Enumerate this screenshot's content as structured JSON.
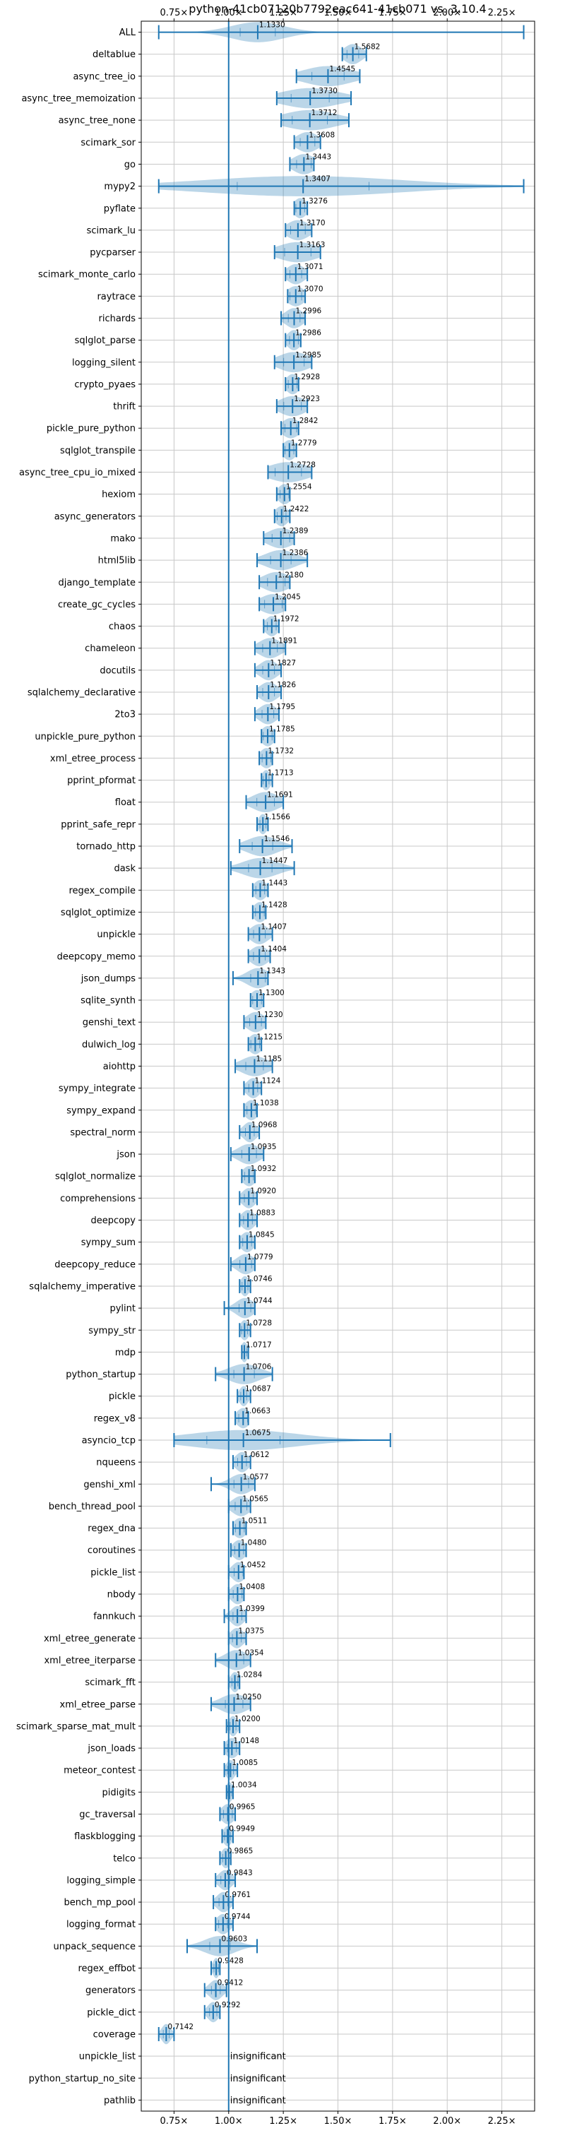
{
  "chart_data": {
    "type": "violin",
    "title": "python-41cb07120b7792eac641-41cb071 vs. 3.10.4",
    "xlim": [
      0.6,
      2.4
    ],
    "xticks": [
      0.75,
      1.0,
      1.25,
      1.5,
      1.75,
      2.0,
      2.25
    ],
    "xtick_labels": [
      "0.75×",
      "1.00×",
      "1.25×",
      "1.50×",
      "1.75×",
      "2.00×",
      "2.25×"
    ],
    "grid": true,
    "reference_line": 1.0,
    "benchmarks": [
      {
        "name": "ALL",
        "value": 1.133,
        "label": "1.1330",
        "lo": 0.68,
        "hi": 2.35,
        "spread": 0.12
      },
      {
        "name": "deltablue",
        "value": 1.5682,
        "label": "1.5682",
        "lo": 1.52,
        "hi": 1.63,
        "spread": 0.04
      },
      {
        "name": "async_tree_io",
        "value": 1.4545,
        "label": "1.4545",
        "lo": 1.31,
        "hi": 1.6,
        "spread": 0.11
      },
      {
        "name": "async_tree_memoization",
        "value": 1.373,
        "label": "1.3730",
        "lo": 1.22,
        "hi": 1.56,
        "spread": 0.13
      },
      {
        "name": "async_tree_none",
        "value": 1.3712,
        "label": "1.3712",
        "lo": 1.24,
        "hi": 1.55,
        "spread": 0.12
      },
      {
        "name": "scimark_sor",
        "value": 1.3608,
        "label": "1.3608",
        "lo": 1.3,
        "hi": 1.42,
        "spread": 0.05
      },
      {
        "name": "go",
        "value": 1.3443,
        "label": "1.3443",
        "lo": 1.28,
        "hi": 1.39,
        "spread": 0.05
      },
      {
        "name": "mypy2",
        "value": 1.3407,
        "label": "1.3407",
        "lo": 0.68,
        "hi": 2.35,
        "spread": 0.45
      },
      {
        "name": "pyflate",
        "value": 1.3276,
        "label": "1.3276",
        "lo": 1.3,
        "hi": 1.36,
        "spread": 0.03
      },
      {
        "name": "scimark_lu",
        "value": 1.317,
        "label": "1.3170",
        "lo": 1.26,
        "hi": 1.38,
        "spread": 0.05
      },
      {
        "name": "pycparser",
        "value": 1.3163,
        "label": "1.3163",
        "lo": 1.21,
        "hi": 1.42,
        "spread": 0.09
      },
      {
        "name": "scimark_monte_carlo",
        "value": 1.3071,
        "label": "1.3071",
        "lo": 1.26,
        "hi": 1.36,
        "spread": 0.04
      },
      {
        "name": "raytrace",
        "value": 1.307,
        "label": "1.3070",
        "lo": 1.27,
        "hi": 1.35,
        "spread": 0.04
      },
      {
        "name": "richards",
        "value": 1.2996,
        "label": "1.2996",
        "lo": 1.24,
        "hi": 1.35,
        "spread": 0.04
      },
      {
        "name": "sqlglot_parse",
        "value": 1.2986,
        "label": "1.2986",
        "lo": 1.26,
        "hi": 1.33,
        "spread": 0.03
      },
      {
        "name": "logging_silent",
        "value": 1.2985,
        "label": "1.2985",
        "lo": 1.21,
        "hi": 1.38,
        "spread": 0.07
      },
      {
        "name": "crypto_pyaes",
        "value": 1.2928,
        "label": "1.2928",
        "lo": 1.26,
        "hi": 1.32,
        "spread": 0.03
      },
      {
        "name": "thrift",
        "value": 1.2923,
        "label": "1.2923",
        "lo": 1.22,
        "hi": 1.36,
        "spread": 0.06
      },
      {
        "name": "pickle_pure_python",
        "value": 1.2842,
        "label": "1.2842",
        "lo": 1.24,
        "hi": 1.32,
        "spread": 0.04
      },
      {
        "name": "sqlglot_transpile",
        "value": 1.2779,
        "label": "1.2779",
        "lo": 1.25,
        "hi": 1.31,
        "spread": 0.03
      },
      {
        "name": "async_tree_cpu_io_mixed",
        "value": 1.2728,
        "label": "1.2728",
        "lo": 1.18,
        "hi": 1.38,
        "spread": 0.09
      },
      {
        "name": "hexiom",
        "value": 1.2554,
        "label": "1.2554",
        "lo": 1.22,
        "hi": 1.28,
        "spread": 0.03
      },
      {
        "name": "async_generators",
        "value": 1.2422,
        "label": "1.2422",
        "lo": 1.21,
        "hi": 1.28,
        "spread": 0.03
      },
      {
        "name": "mako",
        "value": 1.2389,
        "label": "1.2389",
        "lo": 1.16,
        "hi": 1.3,
        "spread": 0.06
      },
      {
        "name": "html5lib",
        "value": 1.2386,
        "label": "1.2386",
        "lo": 1.13,
        "hi": 1.36,
        "spread": 0.07
      },
      {
        "name": "django_template",
        "value": 1.218,
        "label": "1.2180",
        "lo": 1.14,
        "hi": 1.28,
        "spread": 0.06
      },
      {
        "name": "create_gc_cycles",
        "value": 1.2045,
        "label": "1.2045",
        "lo": 1.14,
        "hi": 1.26,
        "spread": 0.06
      },
      {
        "name": "chaos",
        "value": 1.1972,
        "label": "1.1972",
        "lo": 1.16,
        "hi": 1.23,
        "spread": 0.03
      },
      {
        "name": "chameleon",
        "value": 1.1891,
        "label": "1.1891",
        "lo": 1.12,
        "hi": 1.26,
        "spread": 0.05
      },
      {
        "name": "docutils",
        "value": 1.1827,
        "label": "1.1827",
        "lo": 1.12,
        "hi": 1.24,
        "spread": 0.04
      },
      {
        "name": "sqlalchemy_declarative",
        "value": 1.1826,
        "label": "1.1826",
        "lo": 1.13,
        "hi": 1.24,
        "spread": 0.04
      },
      {
        "name": "2to3",
        "value": 1.1795,
        "label": "1.1795",
        "lo": 1.12,
        "hi": 1.23,
        "spread": 0.04
      },
      {
        "name": "unpickle_pure_python",
        "value": 1.1785,
        "label": "1.1785",
        "lo": 1.15,
        "hi": 1.21,
        "spread": 0.03
      },
      {
        "name": "xml_etree_process",
        "value": 1.1732,
        "label": "1.1732",
        "lo": 1.14,
        "hi": 1.2,
        "spread": 0.03
      },
      {
        "name": "pprint_pformat",
        "value": 1.1713,
        "label": "1.1713",
        "lo": 1.15,
        "hi": 1.2,
        "spread": 0.02
      },
      {
        "name": "float",
        "value": 1.1691,
        "label": "1.1691",
        "lo": 1.08,
        "hi": 1.25,
        "spread": 0.06
      },
      {
        "name": "pprint_safe_repr",
        "value": 1.1566,
        "label": "1.1566",
        "lo": 1.13,
        "hi": 1.18,
        "spread": 0.02
      },
      {
        "name": "tornado_http",
        "value": 1.1546,
        "label": "1.1546",
        "lo": 1.05,
        "hi": 1.29,
        "spread": 0.07
      },
      {
        "name": "dask",
        "value": 1.1447,
        "label": "1.1447",
        "lo": 1.01,
        "hi": 1.3,
        "spread": 0.08
      },
      {
        "name": "regex_compile",
        "value": 1.1443,
        "label": "1.1443",
        "lo": 1.11,
        "hi": 1.18,
        "spread": 0.03
      },
      {
        "name": "sqlglot_optimize",
        "value": 1.1428,
        "label": "1.1428",
        "lo": 1.11,
        "hi": 1.17,
        "spread": 0.03
      },
      {
        "name": "unpickle",
        "value": 1.1407,
        "label": "1.1407",
        "lo": 1.09,
        "hi": 1.2,
        "spread": 0.04
      },
      {
        "name": "deepcopy_memo",
        "value": 1.1404,
        "label": "1.1404",
        "lo": 1.09,
        "hi": 1.19,
        "spread": 0.04
      },
      {
        "name": "json_dumps",
        "value": 1.1343,
        "label": "1.1343",
        "lo": 1.02,
        "hi": 1.18,
        "spread": 0.05
      },
      {
        "name": "sqlite_synth",
        "value": 1.13,
        "label": "1.1300",
        "lo": 1.1,
        "hi": 1.16,
        "spread": 0.03
      },
      {
        "name": "genshi_text",
        "value": 1.123,
        "label": "1.1230",
        "lo": 1.07,
        "hi": 1.17,
        "spread": 0.04
      },
      {
        "name": "dulwich_log",
        "value": 1.1215,
        "label": "1.1215",
        "lo": 1.09,
        "hi": 1.15,
        "spread": 0.03
      },
      {
        "name": "aiohttp",
        "value": 1.1185,
        "label": "1.1185",
        "lo": 1.03,
        "hi": 1.2,
        "spread": 0.06
      },
      {
        "name": "sympy_integrate",
        "value": 1.1124,
        "label": "1.1124",
        "lo": 1.07,
        "hi": 1.15,
        "spread": 0.03
      },
      {
        "name": "sympy_expand",
        "value": 1.1038,
        "label": "1.1038",
        "lo": 1.07,
        "hi": 1.13,
        "spread": 0.03
      },
      {
        "name": "spectral_norm",
        "value": 1.0968,
        "label": "1.0968",
        "lo": 1.05,
        "hi": 1.14,
        "spread": 0.03
      },
      {
        "name": "json",
        "value": 1.0935,
        "label": "1.0935",
        "lo": 1.01,
        "hi": 1.16,
        "spread": 0.05
      },
      {
        "name": "sqlglot_normalize",
        "value": 1.0932,
        "label": "1.0932",
        "lo": 1.06,
        "hi": 1.12,
        "spread": 0.03
      },
      {
        "name": "comprehensions",
        "value": 1.092,
        "label": "1.0920",
        "lo": 1.05,
        "hi": 1.13,
        "spread": 0.03
      },
      {
        "name": "deepcopy",
        "value": 1.0883,
        "label": "1.0883",
        "lo": 1.05,
        "hi": 1.13,
        "spread": 0.03
      },
      {
        "name": "sympy_sum",
        "value": 1.0845,
        "label": "1.0845",
        "lo": 1.05,
        "hi": 1.12,
        "spread": 0.03
      },
      {
        "name": "deepcopy_reduce",
        "value": 1.0779,
        "label": "1.0779",
        "lo": 1.01,
        "hi": 1.12,
        "spread": 0.04
      },
      {
        "name": "sqlalchemy_imperative",
        "value": 1.0746,
        "label": "1.0746",
        "lo": 1.05,
        "hi": 1.1,
        "spread": 0.02
      },
      {
        "name": "pylint",
        "value": 1.0744,
        "label": "1.0744",
        "lo": 0.98,
        "hi": 1.12,
        "spread": 0.04
      },
      {
        "name": "sympy_str",
        "value": 1.0728,
        "label": "1.0728",
        "lo": 1.05,
        "hi": 1.1,
        "spread": 0.02
      },
      {
        "name": "mdp",
        "value": 1.0717,
        "label": "1.0717",
        "lo": 1.06,
        "hi": 1.09,
        "spread": 0.015
      },
      {
        "name": "python_startup",
        "value": 1.0706,
        "label": "1.0706",
        "lo": 0.94,
        "hi": 1.2,
        "spread": 0.07
      },
      {
        "name": "pickle",
        "value": 1.0687,
        "label": "1.0687",
        "lo": 1.04,
        "hi": 1.1,
        "spread": 0.02
      },
      {
        "name": "regex_v8",
        "value": 1.0663,
        "label": "1.0663",
        "lo": 1.03,
        "hi": 1.09,
        "spread": 0.03
      },
      {
        "name": "asyncio_tcp",
        "value": 1.0675,
        "label": "1.0675",
        "lo": 0.75,
        "hi": 1.74,
        "spread": 0.25
      },
      {
        "name": "nqueens",
        "value": 1.0612,
        "label": "1.0612",
        "lo": 1.02,
        "hi": 1.1,
        "spread": 0.03
      },
      {
        "name": "genshi_xml",
        "value": 1.0577,
        "label": "1.0577",
        "lo": 0.92,
        "hi": 1.12,
        "spread": 0.05
      },
      {
        "name": "bench_thread_pool",
        "value": 1.0565,
        "label": "1.0565",
        "lo": 1.0,
        "hi": 1.1,
        "spread": 0.04
      },
      {
        "name": "regex_dna",
        "value": 1.0511,
        "label": "1.0511",
        "lo": 1.02,
        "hi": 1.08,
        "spread": 0.03
      },
      {
        "name": "coroutines",
        "value": 1.048,
        "label": "1.0480",
        "lo": 1.01,
        "hi": 1.08,
        "spread": 0.03
      },
      {
        "name": "pickle_list",
        "value": 1.0452,
        "label": "1.0452",
        "lo": 1.0,
        "hi": 1.07,
        "spread": 0.03
      },
      {
        "name": "nbody",
        "value": 1.0408,
        "label": "1.0408",
        "lo": 1.0,
        "hi": 1.07,
        "spread": 0.03
      },
      {
        "name": "fannkuch",
        "value": 1.0399,
        "label": "1.0399",
        "lo": 0.98,
        "hi": 1.08,
        "spread": 0.03
      },
      {
        "name": "xml_etree_generate",
        "value": 1.0375,
        "label": "1.0375",
        "lo": 1.0,
        "hi": 1.08,
        "spread": 0.03
      },
      {
        "name": "xml_etree_iterparse",
        "value": 1.0354,
        "label": "1.0354",
        "lo": 0.94,
        "hi": 1.1,
        "spread": 0.05
      },
      {
        "name": "scimark_fft",
        "value": 1.0284,
        "label": "1.0284",
        "lo": 1.0,
        "hi": 1.05,
        "spread": 0.02
      },
      {
        "name": "xml_etree_parse",
        "value": 1.025,
        "label": "1.0250",
        "lo": 0.92,
        "hi": 1.1,
        "spread": 0.06
      },
      {
        "name": "scimark_sparse_mat_mult",
        "value": 1.02,
        "label": "1.0200",
        "lo": 0.99,
        "hi": 1.05,
        "spread": 0.02
      },
      {
        "name": "json_loads",
        "value": 1.0148,
        "label": "1.0148",
        "lo": 0.98,
        "hi": 1.05,
        "spread": 0.03
      },
      {
        "name": "meteor_contest",
        "value": 1.0085,
        "label": "1.0085",
        "lo": 0.98,
        "hi": 1.04,
        "spread": 0.02
      },
      {
        "name": "pidigits",
        "value": 1.0034,
        "label": "1.0034",
        "lo": 0.99,
        "hi": 1.02,
        "spread": 0.015
      },
      {
        "name": "gc_traversal",
        "value": 0.9965,
        "label": "0.9965",
        "lo": 0.96,
        "hi": 1.03,
        "spread": 0.03
      },
      {
        "name": "flaskblogging",
        "value": 0.9949,
        "label": "0.9949",
        "lo": 0.97,
        "hi": 1.02,
        "spread": 0.02
      },
      {
        "name": "telco",
        "value": 0.9865,
        "label": "0.9865",
        "lo": 0.96,
        "hi": 1.01,
        "spread": 0.02
      },
      {
        "name": "logging_simple",
        "value": 0.9843,
        "label": "0.9843",
        "lo": 0.94,
        "hi": 1.03,
        "spread": 0.03
      },
      {
        "name": "bench_mp_pool",
        "value": 0.9761,
        "label": "0.9761",
        "lo": 0.93,
        "hi": 1.02,
        "spread": 0.03
      },
      {
        "name": "logging_format",
        "value": 0.9744,
        "label": "0.9744",
        "lo": 0.94,
        "hi": 1.02,
        "spread": 0.03
      },
      {
        "name": "unpack_sequence",
        "value": 0.9603,
        "label": "0.9603",
        "lo": 0.81,
        "hi": 1.13,
        "spread": 0.07
      },
      {
        "name": "regex_effbot",
        "value": 0.9428,
        "label": "0.9428",
        "lo": 0.92,
        "hi": 0.96,
        "spread": 0.015
      },
      {
        "name": "generators",
        "value": 0.9412,
        "label": "0.9412",
        "lo": 0.89,
        "hi": 0.99,
        "spread": 0.03
      },
      {
        "name": "pickle_dict",
        "value": 0.9292,
        "label": "0.9292",
        "lo": 0.89,
        "hi": 0.96,
        "spread": 0.025
      },
      {
        "name": "coverage",
        "value": 0.7142,
        "label": "0.7142",
        "lo": 0.68,
        "hi": 0.75,
        "spread": 0.02
      },
      {
        "name": "unpickle_list",
        "value": null,
        "label": "insignificant"
      },
      {
        "name": "python_startup_no_site",
        "value": null,
        "label": "insignificant"
      },
      {
        "name": "pathlib",
        "value": null,
        "label": "insignificant"
      }
    ]
  },
  "colors": {
    "violin": "#1f77b4",
    "grid": "#c8c8c8",
    "text": "#000000"
  }
}
